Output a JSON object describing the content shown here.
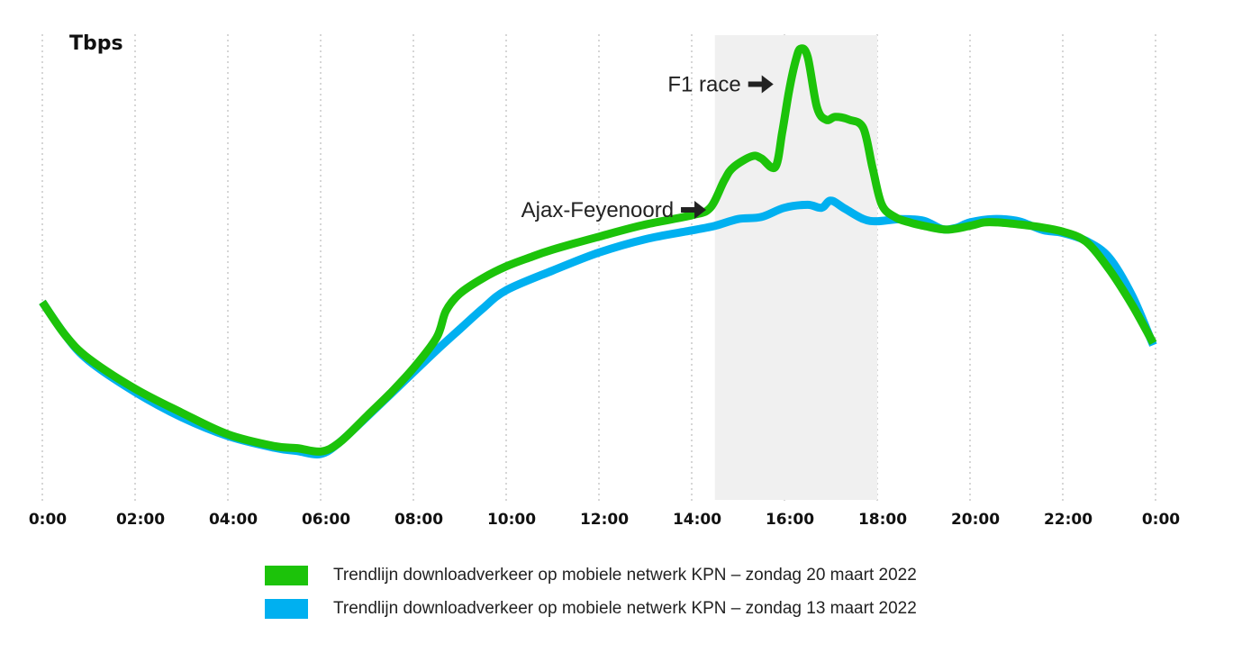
{
  "chart_data": {
    "type": "line",
    "ylabel": "Tbps",
    "x_ticks": [
      "0:00",
      "02:00",
      "04:00",
      "06:00",
      "08:00",
      "10:00",
      "12:00",
      "14:00",
      "16:00",
      "18:00",
      "20:00",
      "22:00",
      "0:00"
    ],
    "highlight_range": [
      14.5,
      18.0
    ],
    "grid": "vertical dotted",
    "annotations": [
      {
        "label": "Ajax-Feyenoord",
        "x": 14.7,
        "y": 60
      },
      {
        "label": "F1 race",
        "x": 16.15,
        "y": 90
      }
    ],
    "series": [
      {
        "name": "Trendlijn downloadverkeer op mobiele netwerk KPN – zondag 20 maart 2022",
        "color": "#1cc30a",
        "x": [
          0,
          0.5,
          1,
          2,
          3,
          4,
          5,
          5.5,
          6,
          6.4,
          7,
          7.5,
          8,
          8.5,
          8.7,
          9,
          9.5,
          10,
          10.5,
          11,
          12,
          13,
          14,
          14.4,
          14.7,
          14.9,
          15.3,
          15.5,
          15.8,
          15.95,
          16.1,
          16.25,
          16.35,
          16.5,
          16.7,
          16.9,
          17.1,
          17.4,
          17.7,
          17.9,
          18.1,
          18.4,
          18.7,
          19,
          19.5,
          20,
          20.3,
          20.6,
          21,
          21.5,
          22,
          22.5,
          23,
          23.5,
          23.95
        ],
        "y": [
          38,
          30,
          24.5,
          17.3,
          11.6,
          6.4,
          3.6,
          3.1,
          2.3,
          4.4,
          10.8,
          16.2,
          22.2,
          29.5,
          35.8,
          40.0,
          43.7,
          46.5,
          48.6,
          50.5,
          53.6,
          56.5,
          58.7,
          60.5,
          67.0,
          70.2,
          72.8,
          72.3,
          70.2,
          78.4,
          88.5,
          96.0,
          98.5,
          96.5,
          84.5,
          81.5,
          82.2,
          81.5,
          79.5,
          70.0,
          61.2,
          58.2,
          57.0,
          56.2,
          55.3,
          56.2,
          57.0,
          57.0,
          56.6,
          55.9,
          54.8,
          52.4,
          45.8,
          37.2,
          28.2
        ]
      },
      {
        "name": "Trendlijn downloadverkeer op mobiele netwerk KPN – zondag 13 maart 2022",
        "color": "#00b0f0",
        "x": [
          0,
          0.5,
          1,
          2,
          3,
          4,
          5,
          5.5,
          6,
          6.4,
          7,
          7.5,
          8,
          8.5,
          9,
          9.5,
          10,
          11,
          12,
          13,
          14,
          14.5,
          15,
          15.5,
          16,
          16.5,
          16.8,
          17,
          17.3,
          17.7,
          18,
          18.5,
          19,
          19.4,
          19.7,
          20,
          20.5,
          21,
          21.3,
          21.6,
          22,
          22.5,
          23,
          23.5,
          23.95
        ],
        "y": [
          38,
          30,
          24,
          16.5,
          10.5,
          6.0,
          3.2,
          2.4,
          1.7,
          4.4,
          10.6,
          15.9,
          21.2,
          26.5,
          31.5,
          36.5,
          40.8,
          45.5,
          49.8,
          53.0,
          55.1,
          56.2,
          57.8,
          58.3,
          60.5,
          61.2,
          60.5,
          62.2,
          60.3,
          57.8,
          57.3,
          57.8,
          57.4,
          55.4,
          55.7,
          57.0,
          57.8,
          57.4,
          56.3,
          55.1,
          54.5,
          52.6,
          48.6,
          39.4,
          27.7
        ]
      }
    ]
  }
}
